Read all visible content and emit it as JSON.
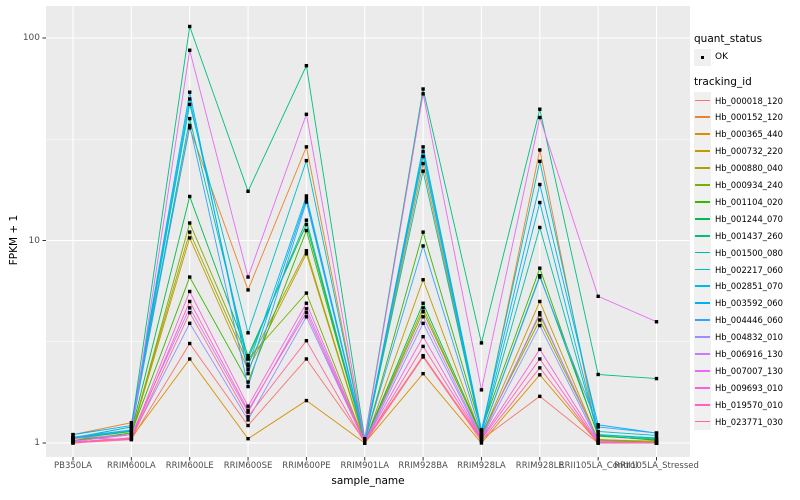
{
  "figure": {
    "y_axis_title": "FPKM + 1",
    "x_axis_title": "sample_name"
  },
  "legend": {
    "quant_status_title": "quant_status",
    "quant_status_item": "OK",
    "tracking_title": "tracking_id"
  },
  "colors": {
    "panel_bg": "#EBEBEB",
    "grid": "#FFFFFF",
    "tick_mark": "#333333",
    "tick_text": "#4D4D4D",
    "point": "#000000",
    "legend_key_bg": "#F0F0F0"
  },
  "chart_data": {
    "type": "line",
    "title": "",
    "xlabel": "sample_name",
    "ylabel": "FPKM + 1",
    "y_scale": "log10",
    "ylim": [
      0.85,
      145
    ],
    "y_major_ticks": [
      1,
      10,
      100
    ],
    "y_major_tick_labels": [
      "1",
      "10",
      "100"
    ],
    "y_minor_ticks": [
      3.1623,
      31.623
    ],
    "grid": true,
    "legend_position": "right",
    "quant_status": "OK",
    "categories": [
      "PB350LA",
      "RRIM600LA",
      "RRIM600LE",
      "RRIM600SE",
      "RRIM600PE",
      "RRIM901LA",
      "RRIM928BA",
      "RRIM928LA",
      "RRIM928LE",
      "RRII105LA_Control",
      "RRII105LA_Stressed"
    ],
    "series": [
      {
        "name": "Hb_000018_120",
        "color": "#F8766D",
        "values": [
          1.06,
          1.04,
          3.1,
          1.22,
          2.6,
          1.02,
          2.7,
          1.04,
          1.7,
          1.0,
          1.0
        ]
      },
      {
        "name": "Hb_000152_120",
        "color": "#EA8331",
        "values": [
          1.1,
          1.26,
          36,
          5.7,
          29,
          1.02,
          24,
          1.1,
          28,
          1.04,
          1.02
        ]
      },
      {
        "name": "Hb_000365_440",
        "color": "#D89000",
        "values": [
          1.0,
          1.06,
          2.6,
          1.05,
          1.62,
          1.0,
          2.2,
          1.0,
          2.17,
          1.0,
          1.0
        ]
      },
      {
        "name": "Hb_000732_220",
        "color": "#C09B00",
        "values": [
          1.02,
          1.1,
          10.3,
          2.3,
          8.6,
          1.0,
          6.4,
          1.08,
          5.0,
          1.03,
          1.0
        ]
      },
      {
        "name": "Hb_000880_040",
        "color": "#A3A500",
        "values": [
          1.02,
          1.12,
          11.0,
          2.45,
          8.9,
          1.01,
          4.65,
          1.08,
          4.3,
          1.04,
          1.01
        ]
      },
      {
        "name": "Hb_000934_240",
        "color": "#7CAE00",
        "values": [
          1.03,
          1.1,
          12.2,
          2.6,
          5.5,
          1.01,
          4.45,
          1.1,
          4.05,
          1.04,
          1.0
        ]
      },
      {
        "name": "Hb_001104_020",
        "color": "#39B600",
        "values": [
          1.03,
          1.12,
          6.6,
          2.0,
          11.2,
          1.02,
          11.0,
          1.16,
          7.3,
          1.08,
          1.04
        ]
      },
      {
        "name": "Hb_001244_070",
        "color": "#00BB4E",
        "values": [
          1.05,
          1.14,
          16.5,
          2.7,
          12.0,
          1.02,
          4.9,
          1.1,
          6.7,
          1.09,
          1.03
        ]
      },
      {
        "name": "Hb_001437_260",
        "color": "#00BF7D",
        "values": [
          1.06,
          1.2,
          114,
          17.5,
          73,
          1.05,
          56,
          3.12,
          44.5,
          2.18,
          2.08
        ]
      },
      {
        "name": "Hb_001500_080",
        "color": "#00C1A3",
        "values": [
          1.05,
          1.15,
          40,
          2.6,
          12.6,
          1.02,
          22,
          1.12,
          11.6,
          1.1,
          1.05
        ]
      },
      {
        "name": "Hb_002217_060",
        "color": "#00BFC4",
        "values": [
          1.06,
          1.16,
          47,
          3.5,
          24.8,
          1.02,
          27.5,
          1.14,
          24.6,
          1.14,
          1.09
        ]
      },
      {
        "name": "Hb_002851_070",
        "color": "#00BAE0",
        "values": [
          1.06,
          1.2,
          50,
          2.4,
          16.6,
          1.03,
          26,
          1.12,
          15.4,
          1.1,
          1.06
        ]
      },
      {
        "name": "Hb_003592_060",
        "color": "#00B0F6",
        "values": [
          1.1,
          1.22,
          54,
          2.2,
          16.0,
          1.03,
          29,
          1.16,
          18.9,
          1.23,
          1.12
        ]
      },
      {
        "name": "Hb_004446_060",
        "color": "#35A2FF",
        "values": [
          1.07,
          1.16,
          37,
          1.9,
          15.5,
          1.02,
          9.4,
          1.1,
          6.6,
          1.2,
          1.12
        ]
      },
      {
        "name": "Hb_004832_010",
        "color": "#9590FF",
        "values": [
          1.01,
          1.06,
          3.9,
          1.3,
          4.2,
          1.0,
          3.9,
          1.05,
          3.8,
          1.01,
          1.0
        ]
      },
      {
        "name": "Hb_006916_130",
        "color": "#C77CFF",
        "values": [
          1.02,
          1.1,
          4.65,
          1.42,
          4.6,
          1.01,
          4.2,
          1.06,
          4.4,
          1.02,
          1.0
        ]
      },
      {
        "name": "Hb_007007_130",
        "color": "#E76BF3",
        "values": [
          1.05,
          1.1,
          87,
          6.6,
          42,
          1.03,
          53,
          1.83,
          40.5,
          5.3,
          3.97
        ]
      },
      {
        "name": "Hb_009693_010",
        "color": "#FA62DB",
        "values": [
          1.01,
          1.06,
          5.6,
          1.52,
          4.9,
          1.01,
          3.35,
          1.05,
          2.9,
          1.01,
          1.0
        ]
      },
      {
        "name": "Hb_019570_010",
        "color": "#FF62BC",
        "values": [
          1.01,
          1.05,
          5.0,
          1.45,
          4.4,
          1.0,
          3.0,
          1.04,
          2.6,
          1.0,
          1.0
        ]
      },
      {
        "name": "Hb_023771_030",
        "color": "#FF6A98",
        "values": [
          1.0,
          1.04,
          4.4,
          1.35,
          3.2,
          1.0,
          2.66,
          1.02,
          2.35,
          1.0,
          1.0
        ]
      }
    ]
  }
}
